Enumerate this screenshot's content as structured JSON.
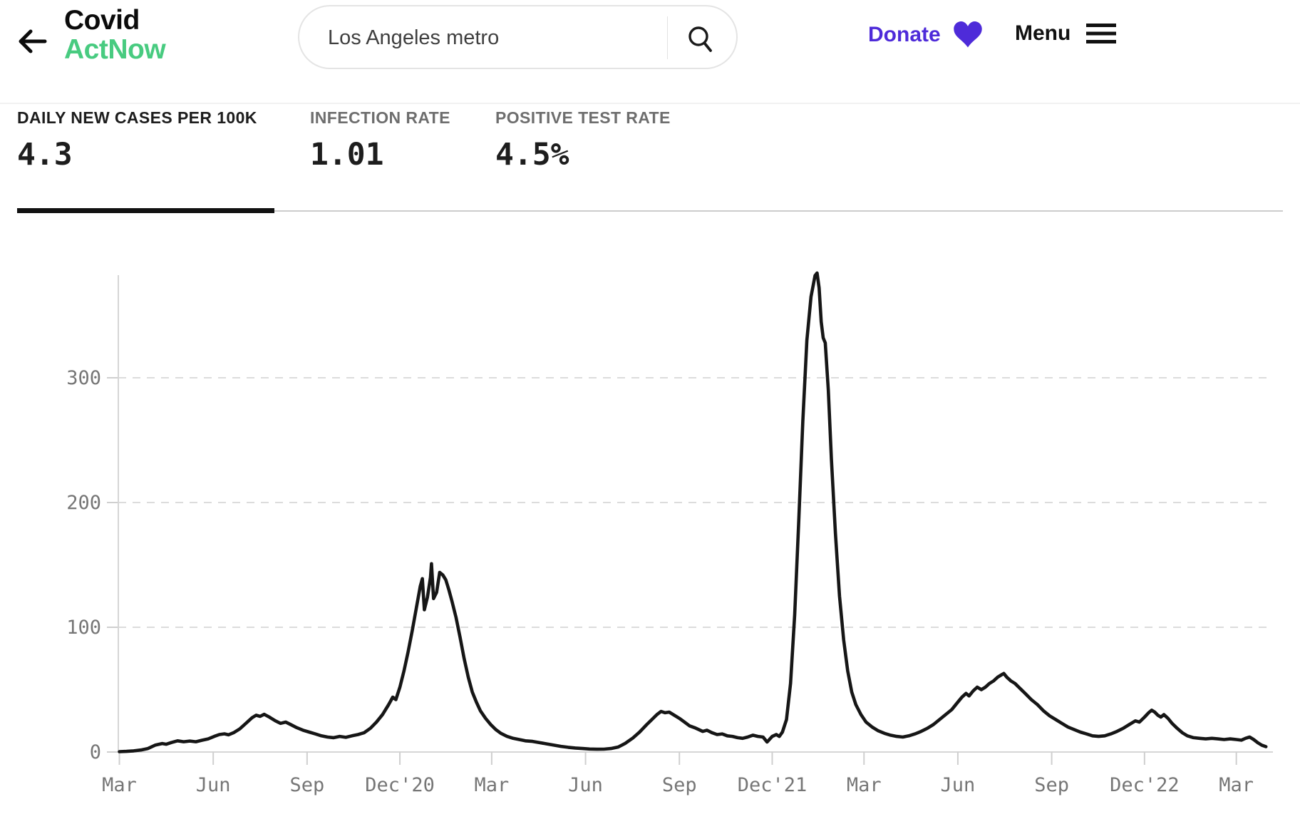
{
  "header": {
    "logo": {
      "line1": "Covid",
      "line2": "ActNow"
    },
    "search": {
      "value": "Los Angeles metro"
    },
    "donate_label": "Donate",
    "menu_label": "Menu"
  },
  "tabs": [
    {
      "label": "DAILY NEW CASES PER 100K",
      "value": "4.3",
      "active": true
    },
    {
      "label": "INFECTION RATE",
      "value": "1.01",
      "active": false
    },
    {
      "label": "POSITIVE TEST RATE",
      "value": "4.5%",
      "active": false
    }
  ],
  "colors": {
    "brand_green": "#48CB80",
    "accent_purple": "#4e2bd9",
    "line_black": "#161616",
    "grid_gray": "#dcdcdc",
    "axis_gray": "#d6d6d6",
    "tick_text_gray": "#767676"
  },
  "chart_data": {
    "type": "line",
    "title": "Daily new cases per 100k — Los Angeles metro",
    "ylabel": "",
    "xlabel": "",
    "ylim": [
      0,
      390
    ],
    "grid": "horizontal dashed",
    "legend": "none",
    "y_ticks": [
      0,
      100,
      200,
      300
    ],
    "x_ticks": [
      "2020-03-01",
      "2020-06-01",
      "2020-09-01",
      "2020-12-01",
      "2021-03-01",
      "2021-06-01",
      "2021-09-01",
      "2021-12-01",
      "2022-03-01",
      "2022-06-01",
      "2022-09-01",
      "2022-12-01",
      "2023-03-01"
    ],
    "x_tick_labels": [
      "Mar",
      "Jun",
      "Sep",
      "Dec'20",
      "Mar",
      "Jun",
      "Sep",
      "Dec'21",
      "Mar",
      "Jun",
      "Sep",
      "Dec'22",
      "Mar"
    ],
    "points": [
      [
        "2020-03-01",
        0.3
      ],
      [
        "2020-03-08",
        0.5
      ],
      [
        "2020-03-15",
        0.9
      ],
      [
        "2020-03-22",
        1.6
      ],
      [
        "2020-03-29",
        2.8
      ],
      [
        "2020-04-05",
        5.5
      ],
      [
        "2020-04-12",
        6.8
      ],
      [
        "2020-04-16",
        6.2
      ],
      [
        "2020-04-21",
        7.6
      ],
      [
        "2020-04-27",
        9
      ],
      [
        "2020-05-03",
        8.2
      ],
      [
        "2020-05-09",
        8.8
      ],
      [
        "2020-05-15",
        8.2
      ],
      [
        "2020-05-21",
        9.4
      ],
      [
        "2020-05-27",
        10.5
      ],
      [
        "2020-06-02",
        12.5
      ],
      [
        "2020-06-07",
        14
      ],
      [
        "2020-06-12",
        14.6
      ],
      [
        "2020-06-16",
        13.8
      ],
      [
        "2020-06-21",
        15.5
      ],
      [
        "2020-06-27",
        18.5
      ],
      [
        "2020-07-03",
        23
      ],
      [
        "2020-07-09",
        27.5
      ],
      [
        "2020-07-13",
        29.5
      ],
      [
        "2020-07-17",
        28.6
      ],
      [
        "2020-07-21",
        30.2
      ],
      [
        "2020-07-26",
        28
      ],
      [
        "2020-08-01",
        25
      ],
      [
        "2020-08-06",
        23
      ],
      [
        "2020-08-11",
        24
      ],
      [
        "2020-08-16",
        22
      ],
      [
        "2020-08-22",
        19.5
      ],
      [
        "2020-08-28",
        17.5
      ],
      [
        "2020-09-03",
        16
      ],
      [
        "2020-09-09",
        14.5
      ],
      [
        "2020-09-15",
        13
      ],
      [
        "2020-09-21",
        12
      ],
      [
        "2020-09-27",
        11.5
      ],
      [
        "2020-10-03",
        12.5
      ],
      [
        "2020-10-09",
        11.8
      ],
      [
        "2020-10-15",
        13
      ],
      [
        "2020-10-21",
        14
      ],
      [
        "2020-10-27",
        15.5
      ],
      [
        "2020-11-02",
        19
      ],
      [
        "2020-11-08",
        24
      ],
      [
        "2020-11-14",
        30
      ],
      [
        "2020-11-20",
        38
      ],
      [
        "2020-11-24",
        44
      ],
      [
        "2020-11-27",
        42
      ],
      [
        "2020-12-01",
        52
      ],
      [
        "2020-12-05",
        65
      ],
      [
        "2020-12-09",
        80
      ],
      [
        "2020-12-13",
        97
      ],
      [
        "2020-12-17",
        115
      ],
      [
        "2020-12-21",
        133
      ],
      [
        "2020-12-23",
        139
      ],
      [
        "2020-12-25",
        114
      ],
      [
        "2020-12-28",
        124
      ],
      [
        "2020-12-31",
        140
      ],
      [
        "2021-01-01",
        151
      ],
      [
        "2021-01-03",
        123
      ],
      [
        "2021-01-06",
        128
      ],
      [
        "2021-01-09",
        144
      ],
      [
        "2021-01-12",
        142
      ],
      [
        "2021-01-15",
        138
      ],
      [
        "2021-01-18",
        130
      ],
      [
        "2021-01-21",
        121
      ],
      [
        "2021-01-25",
        108
      ],
      [
        "2021-01-29",
        92
      ],
      [
        "2021-02-02",
        75
      ],
      [
        "2021-02-06",
        60
      ],
      [
        "2021-02-10",
        48
      ],
      [
        "2021-02-14",
        40
      ],
      [
        "2021-02-18",
        33
      ],
      [
        "2021-02-23",
        27
      ],
      [
        "2021-02-28",
        22
      ],
      [
        "2021-03-05",
        18
      ],
      [
        "2021-03-10",
        15
      ],
      [
        "2021-03-16",
        12.5
      ],
      [
        "2021-03-22",
        11
      ],
      [
        "2021-03-28",
        10
      ],
      [
        "2021-04-03",
        9
      ],
      [
        "2021-04-10",
        8.5
      ],
      [
        "2021-04-17",
        7.5
      ],
      [
        "2021-04-24",
        6.5
      ],
      [
        "2021-05-01",
        5.5
      ],
      [
        "2021-05-08",
        4.5
      ],
      [
        "2021-05-15",
        3.8
      ],
      [
        "2021-05-22",
        3.2
      ],
      [
        "2021-05-29",
        2.8
      ],
      [
        "2021-06-05",
        2.4
      ],
      [
        "2021-06-12",
        2.2
      ],
      [
        "2021-06-19",
        2.3
      ],
      [
        "2021-06-26",
        2.8
      ],
      [
        "2021-07-03",
        4
      ],
      [
        "2021-07-10",
        7
      ],
      [
        "2021-07-17",
        11
      ],
      [
        "2021-07-24",
        16
      ],
      [
        "2021-07-31",
        22
      ],
      [
        "2021-08-05",
        26
      ],
      [
        "2021-08-10",
        30
      ],
      [
        "2021-08-14",
        32.5
      ],
      [
        "2021-08-18",
        31.5
      ],
      [
        "2021-08-22",
        32
      ],
      [
        "2021-08-26",
        30
      ],
      [
        "2021-09-01",
        27
      ],
      [
        "2021-09-06",
        24
      ],
      [
        "2021-09-11",
        21
      ],
      [
        "2021-09-16",
        19.5
      ],
      [
        "2021-09-20",
        18
      ],
      [
        "2021-09-24",
        16.5
      ],
      [
        "2021-09-28",
        17.5
      ],
      [
        "2021-10-03",
        15.5
      ],
      [
        "2021-10-08",
        14
      ],
      [
        "2021-10-13",
        14.5
      ],
      [
        "2021-10-18",
        13
      ],
      [
        "2021-10-23",
        12.5
      ],
      [
        "2021-10-28",
        11.5
      ],
      [
        "2021-11-02",
        11
      ],
      [
        "2021-11-07",
        12
      ],
      [
        "2021-11-12",
        13.5
      ],
      [
        "2021-11-17",
        12.5
      ],
      [
        "2021-11-22",
        12
      ],
      [
        "2021-11-26",
        8
      ],
      [
        "2021-12-01",
        12.5
      ],
      [
        "2021-12-05",
        14
      ],
      [
        "2021-12-08",
        12.5
      ],
      [
        "2021-12-11",
        16
      ],
      [
        "2021-12-15",
        26
      ],
      [
        "2021-12-19",
        55
      ],
      [
        "2021-12-23",
        110
      ],
      [
        "2021-12-27",
        185
      ],
      [
        "2021-12-31",
        265
      ],
      [
        "2022-01-04",
        330
      ],
      [
        "2022-01-08",
        365
      ],
      [
        "2022-01-12",
        382
      ],
      [
        "2022-01-14",
        384
      ],
      [
        "2022-01-16",
        372
      ],
      [
        "2022-01-18",
        345
      ],
      [
        "2022-01-20",
        332
      ],
      [
        "2022-01-22",
        328
      ],
      [
        "2022-01-25",
        290
      ],
      [
        "2022-01-28",
        235
      ],
      [
        "2022-02-01",
        175
      ],
      [
        "2022-02-05",
        125
      ],
      [
        "2022-02-09",
        90
      ],
      [
        "2022-02-13",
        65
      ],
      [
        "2022-02-17",
        48
      ],
      [
        "2022-02-21",
        38
      ],
      [
        "2022-02-26",
        30
      ],
      [
        "2022-03-03",
        24
      ],
      [
        "2022-03-09",
        20
      ],
      [
        "2022-03-15",
        17
      ],
      [
        "2022-03-21",
        15
      ],
      [
        "2022-03-27",
        13.5
      ],
      [
        "2022-04-02",
        12.5
      ],
      [
        "2022-04-08",
        12
      ],
      [
        "2022-04-14",
        13
      ],
      [
        "2022-04-20",
        14.5
      ],
      [
        "2022-04-26",
        16.5
      ],
      [
        "2022-05-02",
        19
      ],
      [
        "2022-05-08",
        22
      ],
      [
        "2022-05-14",
        26
      ],
      [
        "2022-05-20",
        30
      ],
      [
        "2022-05-26",
        34
      ],
      [
        "2022-06-01",
        40
      ],
      [
        "2022-06-05",
        44
      ],
      [
        "2022-06-09",
        47
      ],
      [
        "2022-06-12",
        45
      ],
      [
        "2022-06-16",
        49
      ],
      [
        "2022-06-20",
        52
      ],
      [
        "2022-06-24",
        50
      ],
      [
        "2022-06-28",
        52
      ],
      [
        "2022-07-02",
        55
      ],
      [
        "2022-07-06",
        57
      ],
      [
        "2022-07-10",
        60
      ],
      [
        "2022-07-14",
        62
      ],
      [
        "2022-07-16",
        63
      ],
      [
        "2022-07-19",
        60
      ],
      [
        "2022-07-23",
        57
      ],
      [
        "2022-07-27",
        55
      ],
      [
        "2022-08-01",
        51
      ],
      [
        "2022-08-06",
        47
      ],
      [
        "2022-08-12",
        42
      ],
      [
        "2022-08-18",
        38
      ],
      [
        "2022-08-24",
        33
      ],
      [
        "2022-08-30",
        29
      ],
      [
        "2022-09-05",
        26
      ],
      [
        "2022-09-11",
        23
      ],
      [
        "2022-09-17",
        20
      ],
      [
        "2022-09-23",
        18
      ],
      [
        "2022-09-29",
        16
      ],
      [
        "2022-10-05",
        14.5
      ],
      [
        "2022-10-11",
        13
      ],
      [
        "2022-10-17",
        12.5
      ],
      [
        "2022-10-23",
        13
      ],
      [
        "2022-10-29",
        14.5
      ],
      [
        "2022-11-04",
        16.5
      ],
      [
        "2022-11-10",
        19
      ],
      [
        "2022-11-16",
        22
      ],
      [
        "2022-11-22",
        25
      ],
      [
        "2022-11-26",
        24
      ],
      [
        "2022-12-01",
        28
      ],
      [
        "2022-12-05",
        31.5
      ],
      [
        "2022-12-08",
        33.5
      ],
      [
        "2022-12-11",
        32
      ],
      [
        "2022-12-14",
        29.5
      ],
      [
        "2022-12-17",
        28
      ],
      [
        "2022-12-20",
        30
      ],
      [
        "2022-12-24",
        27
      ],
      [
        "2022-12-28",
        23
      ],
      [
        "2023-01-02",
        19
      ],
      [
        "2023-01-07",
        15.5
      ],
      [
        "2023-01-12",
        13
      ],
      [
        "2023-01-18",
        11.5
      ],
      [
        "2023-01-24",
        11
      ],
      [
        "2023-01-30",
        10.5
      ],
      [
        "2023-02-05",
        11
      ],
      [
        "2023-02-11",
        10.5
      ],
      [
        "2023-02-17",
        10
      ],
      [
        "2023-02-23",
        10.5
      ],
      [
        "2023-03-01",
        10
      ],
      [
        "2023-03-06",
        9.5
      ],
      [
        "2023-03-10",
        11
      ],
      [
        "2023-03-14",
        12
      ],
      [
        "2023-03-18",
        10
      ],
      [
        "2023-03-22",
        7.5
      ],
      [
        "2023-03-26",
        5.5
      ],
      [
        "2023-03-30",
        4.3
      ]
    ]
  }
}
